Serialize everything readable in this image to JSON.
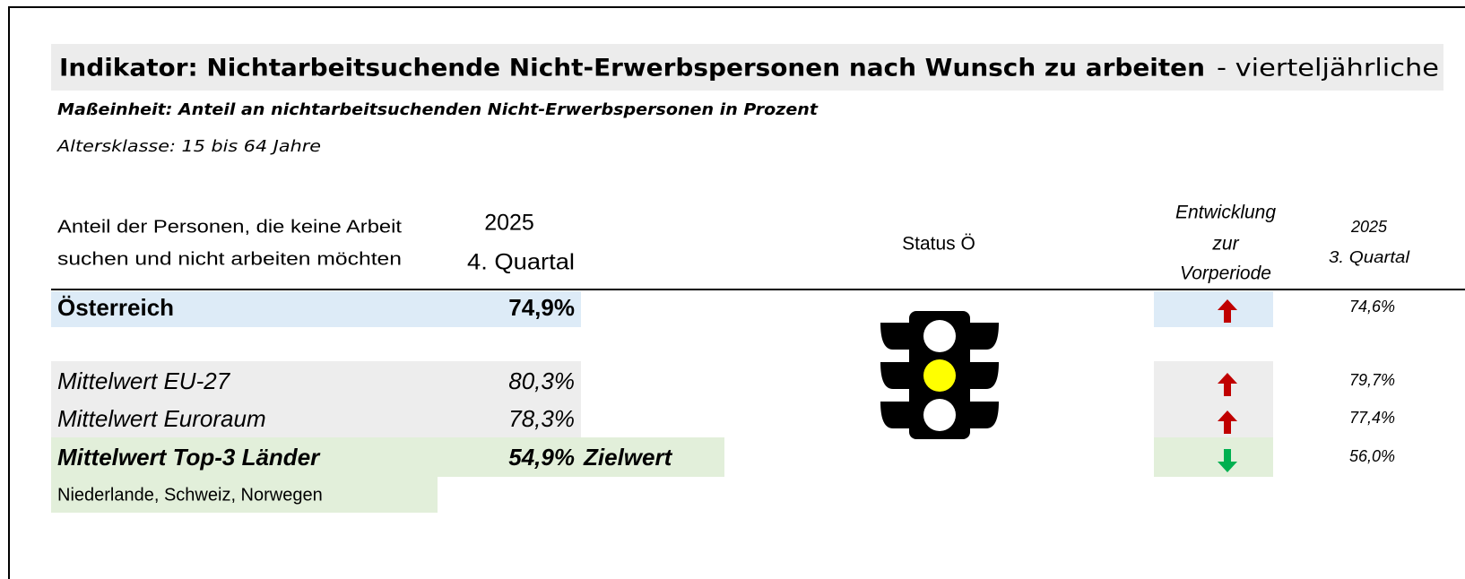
{
  "header": {
    "title_bold": "Indikator: Nichtarbeitsuchende Nicht-Erwerbspersonen nach Wunsch zu arbeiten",
    "title_rest": "- vierteljährliche",
    "unit": "Maßeinheit: Anteil an nichtarbeitsuchenden Nicht-Erwerbspersonen in Prozent",
    "age": "Altersklasse: 15 bis 64 Jahre"
  },
  "table": {
    "columns": {
      "label": [
        "Anteil der Personen, die keine Arbeit",
        "suchen und nicht arbeiten möchten"
      ],
      "current": [
        "2025",
        "4. Quartal"
      ],
      "status": "Status Ö",
      "trend": [
        "Entwicklung",
        "zur",
        "Vorperiode"
      ],
      "previous": [
        "2025",
        "3. Quartal"
      ]
    },
    "status_light": "#ffff00",
    "rows": [
      {
        "name": "Österreich",
        "current": "74,9%",
        "trend": "up",
        "previous": "74,6%"
      },
      {
        "name": "Mittelwert EU-27",
        "current": "80,3%",
        "trend": "up",
        "previous": "79,7%"
      },
      {
        "name": "Mittelwert Euroraum",
        "current": "78,3%",
        "trend": "up",
        "previous": "77,4%"
      },
      {
        "name": "Mittelwert Top-3 Länder",
        "current": "54,9%",
        "note": "Zielwert",
        "trend": "down",
        "previous": "56,0%",
        "countries": "Niederlande, Schweiz, Norwegen"
      }
    ]
  }
}
